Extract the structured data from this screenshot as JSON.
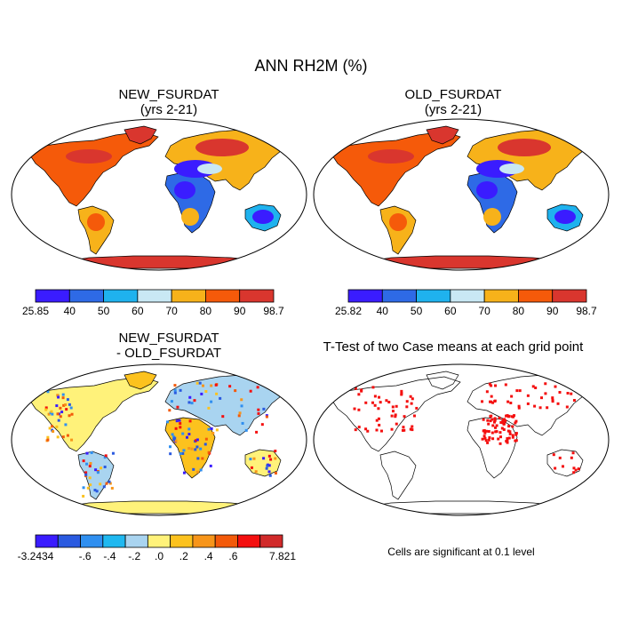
{
  "main_title": "ANN RH2M (%)",
  "panels": [
    {
      "title": "NEW_FSURDAT",
      "subtitle": "(yrs 2-21)"
    },
    {
      "title": "OLD_FSURDAT",
      "subtitle": "(yrs 2-21)"
    },
    {
      "title": "NEW_FSURDAT",
      "subtitle": "- OLD_FSURDAT"
    },
    {
      "title": "T-Test of two Case means at each grid point",
      "subtitle": ""
    }
  ],
  "note": "Cells are significant at 0.1 level",
  "colorbars": [
    {
      "colors": [
        "#3a1cff",
        "#2e6ae6",
        "#1fb2ee",
        "#c9e8f4",
        "#f7b21a",
        "#f55a0a",
        "#d9362e"
      ],
      "labels": [
        "25.85",
        "40",
        "50",
        "60",
        "70",
        "80",
        "90",
        "98.7"
      ]
    },
    {
      "colors": [
        "#3a1cff",
        "#2e6ae6",
        "#1fb2ee",
        "#c9e8f4",
        "#f7b21a",
        "#f55a0a",
        "#d9362e"
      ],
      "labels": [
        "25.82",
        "40",
        "50",
        "60",
        "70",
        "80",
        "90",
        "98.7"
      ]
    },
    {
      "colors": [
        "#3a1cff",
        "#2a5ae0",
        "#2f8ff0",
        "#1fb8f0",
        "#a9d4f0",
        "#fff27a",
        "#fcc21e",
        "#f7951a",
        "#f35a0a",
        "#f40f0f",
        "#d12a2a"
      ],
      "labels": [
        "-3.2434",
        "",
        "-.6",
        "-.4",
        "-.2",
        ".0",
        ".2",
        ".4",
        ".6",
        "",
        "7.821"
      ]
    }
  ]
}
